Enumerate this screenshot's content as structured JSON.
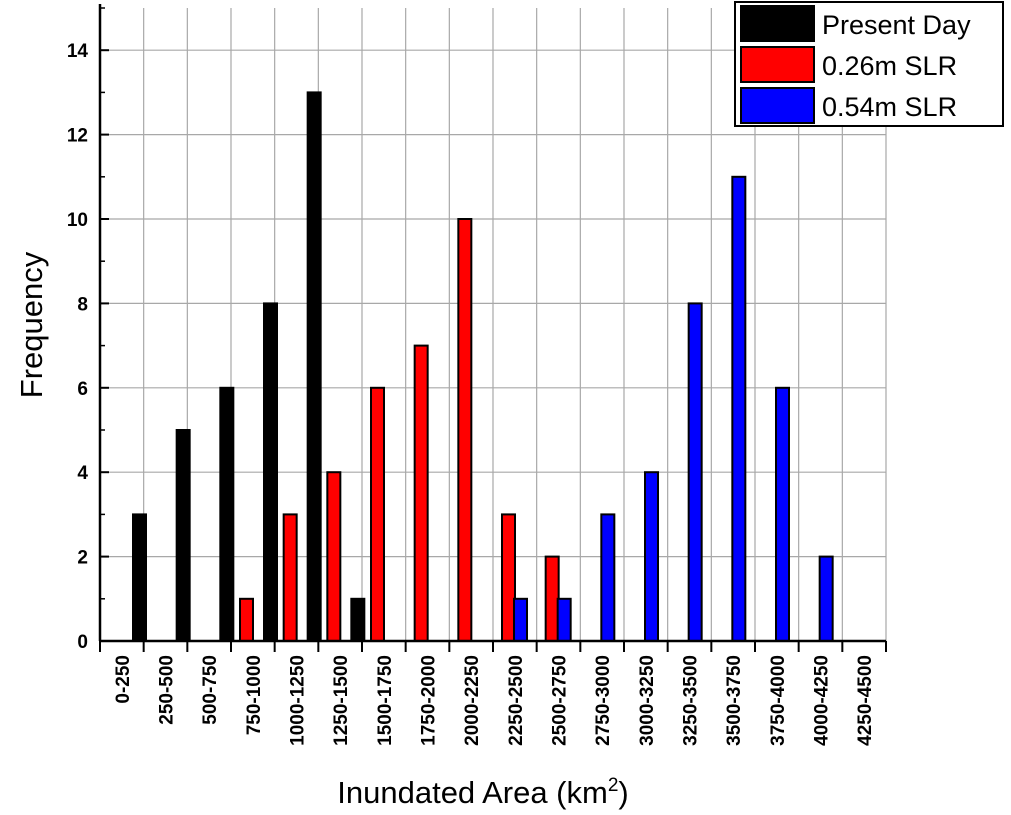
{
  "chart_data": {
    "type": "bar",
    "categories": [
      "0-250",
      "250-500",
      "500-750",
      "750-1000",
      "1000-1250",
      "1250-1500",
      "1500-1750",
      "1750-2000",
      "2000-2250",
      "2250-2500",
      "2500-2750",
      "2750-3000",
      "3000-3250",
      "3250-3500",
      "3500-3750",
      "3750-4000",
      "4000-4250",
      "4250-4500"
    ],
    "series": [
      {
        "name": "Present Day",
        "color": "#000000",
        "values": [
          3,
          5,
          6,
          8,
          13,
          1,
          0,
          0,
          0,
          0,
          0,
          0,
          0,
          0,
          0,
          0,
          0,
          0
        ]
      },
      {
        "name": "0.26m SLR",
        "color": "#ff0000",
        "values": [
          0,
          0,
          0,
          1,
          3,
          4,
          6,
          7,
          10,
          3,
          2,
          0,
          0,
          0,
          0,
          0,
          0,
          0
        ]
      },
      {
        "name": "0.54m SLR",
        "color": "#0000ff",
        "values": [
          0,
          0,
          0,
          0,
          0,
          0,
          0,
          0,
          0,
          1,
          1,
          3,
          4,
          8,
          11,
          6,
          2,
          0
        ]
      }
    ],
    "bar_order_per_group": [
      "0.26m SLR",
      "0.54m SLR",
      "Present Day"
    ],
    "xlabel_prefix": "Inundated Area (km",
    "xlabel_superscript": "2",
    "xlabel_suffix": ")",
    "ylabel": "Frequency",
    "ylim": [
      0,
      15
    ],
    "yticks": [
      0,
      2,
      4,
      6,
      8,
      10,
      12,
      14
    ],
    "grid": true,
    "legend_position": "top-right"
  }
}
